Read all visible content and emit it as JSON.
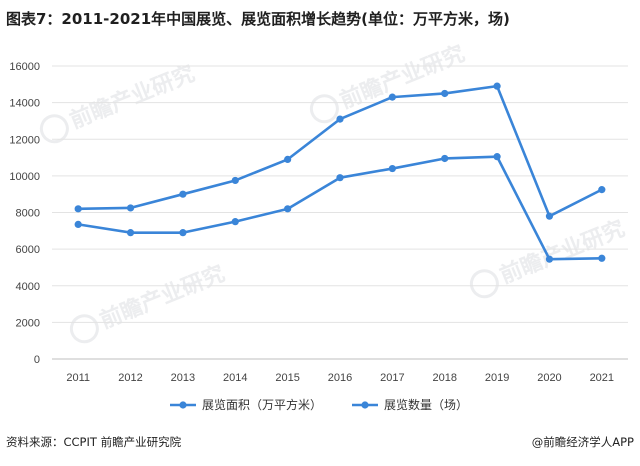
{
  "title": "图表7：2011-2021年中国展览、展览面积增长趋势(单位：万平方米，场)",
  "footer": {
    "source": "资料来源：CCPIT 前瞻产业研究院",
    "brand": "@前瞻经济学人APP"
  },
  "watermark": "前瞻产业研究",
  "colors": {
    "series": "#3a85d8",
    "grid": "#e3e3e3",
    "axis": "#bfbfbf"
  },
  "chart_data": {
    "type": "line",
    "x": [
      "2011",
      "2012",
      "2013",
      "2014",
      "2015",
      "2016",
      "2017",
      "2018",
      "2019",
      "2020",
      "2021"
    ],
    "ylim": [
      0,
      16000
    ],
    "yticks": [
      0,
      2000,
      4000,
      6000,
      8000,
      10000,
      12000,
      14000,
      16000
    ],
    "grid": true,
    "legend": "bottom",
    "series": [
      {
        "name": "展览面积（万平方米）",
        "values": [
          8200,
          8250,
          9000,
          9750,
          10900,
          13100,
          14300,
          14500,
          14900,
          7800,
          9250
        ]
      },
      {
        "name": "展览数量（场）",
        "values": [
          7350,
          6900,
          6900,
          7500,
          8200,
          9900,
          10400,
          10950,
          11050,
          5450,
          5500
        ]
      }
    ]
  }
}
